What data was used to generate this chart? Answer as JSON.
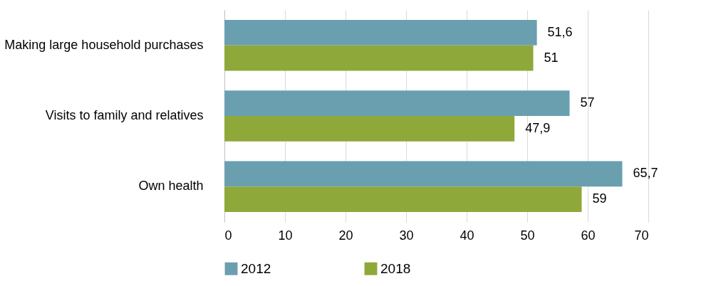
{
  "chart_data": {
    "type": "bar",
    "orientation": "horizontal",
    "categories": [
      "Making large household purchases",
      "Visits to family and relatives",
      "Own health"
    ],
    "series": [
      {
        "name": "2012",
        "color": "#6a9fb0",
        "values": [
          51.6,
          57,
          65.7
        ],
        "value_labels": [
          "51,6",
          "57",
          "65,7"
        ]
      },
      {
        "name": "2018",
        "color": "#8fa83a",
        "values": [
          51,
          47.9,
          59
        ],
        "value_labels": [
          "51",
          "47,9",
          "59"
        ]
      }
    ],
    "xlim": [
      0,
      70
    ],
    "xticks": [
      0,
      10,
      20,
      30,
      40,
      50,
      60,
      70
    ],
    "grid": "x",
    "legend": "bottom"
  }
}
